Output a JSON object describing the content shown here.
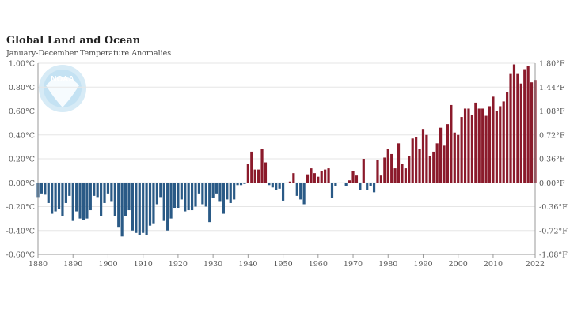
{
  "title": "Global Land and Ocean",
  "subtitle": "January-December Temperature Anomalies",
  "logo_text": "NOAA",
  "colors": {
    "positive": "#8b1a2b",
    "negative": "#2a5a86",
    "grid": "#e6e6e6",
    "axis": "#999999"
  },
  "chart_data": {
    "type": "bar",
    "x_start": 1880,
    "x_end": 2022,
    "ylim": [
      -0.6,
      1.0
    ],
    "y_ticks_left": [
      "-0.60°C",
      "-0.40°C",
      "-0.20°C",
      "0.00°C",
      "0.20°C",
      "0.40°C",
      "0.60°C",
      "0.80°C",
      "1.00°C"
    ],
    "y_ticks_right": [
      "-1.08°F",
      "-0.72°F",
      "-0.36°F",
      "0.00°F",
      "0.36°F",
      "0.72°F",
      "1.08°F",
      "1.44°F",
      "1.80°F"
    ],
    "x_ticks": [
      "1880",
      "1890",
      "1900",
      "1910",
      "1920",
      "1930",
      "1940",
      "1950",
      "1960",
      "1970",
      "1980",
      "1990",
      "2000",
      "2010",
      "2022"
    ],
    "grid": true,
    "values": [
      -0.12,
      -0.09,
      -0.1,
      -0.17,
      -0.26,
      -0.24,
      -0.22,
      -0.28,
      -0.17,
      -0.11,
      -0.32,
      -0.24,
      -0.3,
      -0.31,
      -0.3,
      -0.23,
      -0.11,
      -0.12,
      -0.28,
      -0.17,
      -0.09,
      -0.16,
      -0.28,
      -0.37,
      -0.45,
      -0.28,
      -0.23,
      -0.4,
      -0.42,
      -0.44,
      -0.42,
      -0.44,
      -0.36,
      -0.34,
      -0.18,
      -0.12,
      -0.32,
      -0.4,
      -0.3,
      -0.21,
      -0.21,
      -0.14,
      -0.24,
      -0.23,
      -0.23,
      -0.2,
      -0.09,
      -0.18,
      -0.2,
      -0.33,
      -0.13,
      -0.09,
      -0.16,
      -0.26,
      -0.14,
      -0.17,
      -0.14,
      -0.02,
      -0.02,
      -0.01,
      0.16,
      0.26,
      0.11,
      0.11,
      0.28,
      0.17,
      -0.02,
      -0.04,
      -0.06,
      -0.05,
      -0.15,
      0.0,
      0.01,
      0.08,
      -0.11,
      -0.14,
      -0.18,
      0.07,
      0.12,
      0.08,
      0.05,
      0.1,
      0.11,
      0.12,
      -0.13,
      -0.03,
      0.0,
      0.0,
      -0.03,
      0.02,
      0.1,
      0.06,
      -0.06,
      0.2,
      -0.06,
      -0.03,
      -0.08,
      0.19,
      0.06,
      0.21,
      0.28,
      0.24,
      0.12,
      0.33,
      0.16,
      0.12,
      0.22,
      0.37,
      0.38,
      0.28,
      0.45,
      0.4,
      0.22,
      0.26,
      0.33,
      0.46,
      0.31,
      0.49,
      0.65,
      0.42,
      0.4,
      0.55,
      0.62,
      0.62,
      0.57,
      0.67,
      0.62,
      0.62,
      0.56,
      0.64,
      0.72,
      0.6,
      0.64,
      0.68,
      0.76,
      0.91,
      0.99,
      0.91,
      0.83,
      0.95,
      0.98,
      0.84,
      0.86
    ]
  }
}
